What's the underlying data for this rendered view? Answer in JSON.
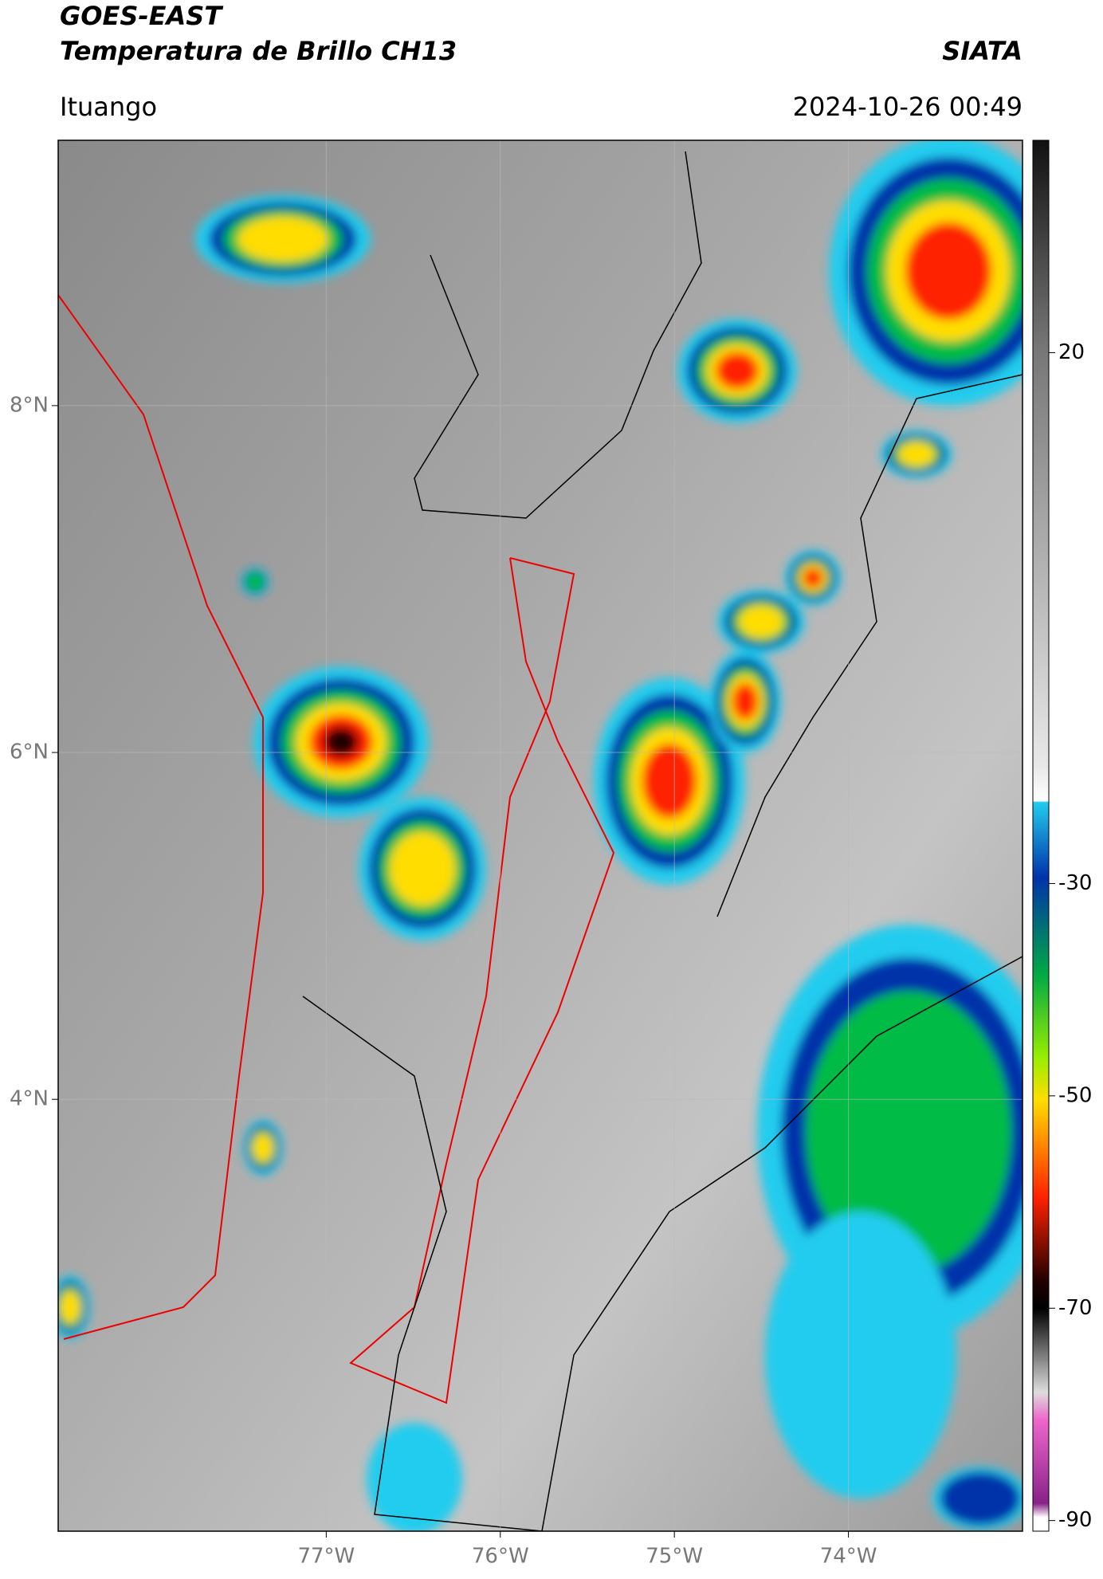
{
  "header": {
    "title": "GOES-EAST",
    "subtitle": "Temperatura de Brillo CH13",
    "source": "SIATA",
    "location": "Ituango",
    "datetime": "2024-10-26 00:49"
  },
  "map": {
    "xlim": [
      -78.54,
      -73.0
    ],
    "ylim": [
      1.51,
      9.53
    ],
    "xticks": [
      {
        "value": -77,
        "label": "77°W"
      },
      {
        "value": -76,
        "label": "76°W"
      },
      {
        "value": -75,
        "label": "75°W"
      },
      {
        "value": -74,
        "label": "74°W"
      }
    ],
    "yticks": [
      {
        "value": 8,
        "label": "8°N"
      },
      {
        "value": 6,
        "label": "6°N"
      },
      {
        "value": 4,
        "label": "4°N"
      }
    ],
    "grid": true
  },
  "colorbar": {
    "lim": [
      -91,
      40
    ],
    "ticks": [
      20,
      -30,
      -50,
      -70,
      -90
    ]
  }
}
